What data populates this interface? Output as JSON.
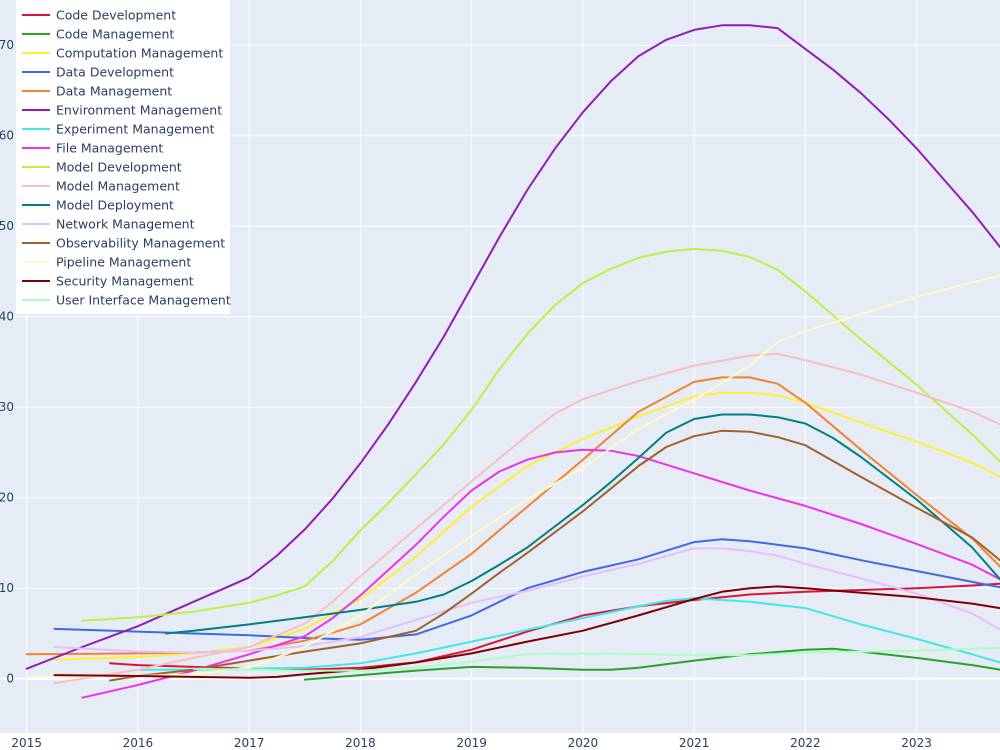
{
  "chart_data": {
    "type": "line",
    "title": "",
    "xlabel": "",
    "ylabel": "",
    "xlim": [
      2014.76,
      2023.75
    ],
    "ylim": [
      -6,
      75
    ],
    "x_ticks": [
      2015,
      2016,
      2017,
      2018,
      2019,
      2020,
      2021,
      2022,
      2023
    ],
    "y_ticks": [
      0,
      10,
      20,
      30,
      40,
      50,
      60,
      70
    ],
    "grid": true,
    "plot_bg": "#e5ecf6",
    "grid_color": "#ffffff",
    "legend_position": "top-left",
    "series": [
      {
        "name": "Code Development",
        "color": "#dc143c",
        "x": [
          2015.75,
          2016.0,
          2016.5,
          2017.0,
          2017.5,
          2018.0,
          2018.5,
          2019.0,
          2019.5,
          2020.0,
          2020.5,
          2021.0,
          2021.5,
          2022.0,
          2022.5,
          2023.0,
          2023.5,
          2023.75
        ],
        "y": [
          1.7,
          1.5,
          1.3,
          1.1,
          1.0,
          1.2,
          1.8,
          3.2,
          5.2,
          7.0,
          8.0,
          8.7,
          9.3,
          9.6,
          9.8,
          10.0,
          10.3,
          10.5
        ]
      },
      {
        "name": "Code Management",
        "color": "#2ca02c",
        "x": [
          2017.5,
          2018.0,
          2018.5,
          2019.0,
          2019.5,
          2020.0,
          2020.25,
          2020.5,
          2021.0,
          2021.5,
          2022.0,
          2022.25,
          2022.5,
          2023.0,
          2023.5,
          2023.75
        ],
        "y": [
          -0.1,
          0.4,
          0.9,
          1.3,
          1.2,
          1.0,
          1.0,
          1.2,
          2.0,
          2.7,
          3.2,
          3.3,
          3.0,
          2.3,
          1.5,
          1.0
        ]
      },
      {
        "name": "Computation Management",
        "color": "#ffee33",
        "x": [
          2015.25,
          2016.0,
          2016.5,
          2017.0,
          2017.5,
          2018.0,
          2018.5,
          2019.0,
          2019.5,
          2020.0,
          2020.5,
          2021.0,
          2021.25,
          2021.5,
          2021.75,
          2022.0,
          2022.5,
          2023.0,
          2023.5,
          2023.75
        ],
        "y": [
          2.1,
          2.4,
          2.8,
          3.5,
          5.5,
          8.8,
          13.5,
          19.0,
          23.5,
          26.5,
          29.0,
          31.2,
          31.6,
          31.6,
          31.3,
          30.5,
          28.3,
          26.2,
          23.9,
          22.3
        ]
      },
      {
        "name": "Data Development",
        "color": "#4169e1",
        "x": [
          2015.25,
          2016.0,
          2016.5,
          2017.0,
          2017.5,
          2018.0,
          2018.5,
          2019.0,
          2019.5,
          2020.0,
          2020.5,
          2021.0,
          2021.25,
          2021.5,
          2022.0,
          2022.5,
          2023.0,
          2023.5,
          2023.75
        ],
        "y": [
          5.5,
          5.2,
          5.0,
          4.8,
          4.5,
          4.3,
          4.9,
          7.0,
          10.0,
          11.8,
          13.2,
          15.1,
          15.4,
          15.2,
          14.4,
          13.1,
          11.9,
          10.7,
          10.1
        ]
      },
      {
        "name": "Data Management",
        "color": "#f58231",
        "x": [
          2015.0,
          2016.0,
          2016.5,
          2017.0,
          2017.5,
          2018.0,
          2018.5,
          2019.0,
          2019.5,
          2020.0,
          2020.5,
          2021.0,
          2021.25,
          2021.5,
          2021.75,
          2022.0,
          2022.5,
          2023.0,
          2023.5,
          2023.75
        ],
        "y": [
          2.7,
          2.8,
          2.9,
          3.1,
          4.2,
          6.0,
          9.5,
          13.8,
          19.0,
          24.2,
          29.5,
          32.8,
          33.3,
          33.3,
          32.6,
          30.5,
          25.3,
          20.3,
          15.5,
          12.4
        ]
      },
      {
        "name": "Environment Management",
        "color": "#911eb4",
        "x": [
          2015.0,
          2015.5,
          2016.0,
          2016.5,
          2017.0,
          2017.25,
          2017.5,
          2017.75,
          2018.0,
          2018.25,
          2018.5,
          2018.75,
          2019.0,
          2019.25,
          2019.5,
          2019.75,
          2020.0,
          2020.25,
          2020.5,
          2020.75,
          2021.0,
          2021.25,
          2021.5,
          2021.75,
          2022.0,
          2022.25,
          2022.5,
          2022.75,
          2023.0,
          2023.25,
          2023.5,
          2023.75
        ],
        "y": [
          1.1,
          3.5,
          5.8,
          8.5,
          11.2,
          13.6,
          16.5,
          19.9,
          23.8,
          28.1,
          32.8,
          37.8,
          43.3,
          48.8,
          54.0,
          58.6,
          62.6,
          66.0,
          68.8,
          70.6,
          71.7,
          72.2,
          72.2,
          71.9,
          69.6,
          67.3,
          64.7,
          61.8,
          58.6,
          55.1,
          51.6,
          47.7
        ]
      },
      {
        "name": "Experiment Management",
        "color": "#42e8e8",
        "x": [
          2016.0,
          2016.5,
          2017.0,
          2017.5,
          2018.0,
          2018.5,
          2019.0,
          2019.5,
          2020.0,
          2020.5,
          2020.75,
          2021.0,
          2021.5,
          2022.0,
          2022.5,
          2023.0,
          2023.5,
          2023.75
        ],
        "y": [
          1.0,
          1.0,
          1.1,
          1.2,
          1.7,
          2.8,
          4.1,
          5.4,
          6.7,
          8.0,
          8.6,
          8.9,
          8.5,
          7.8,
          6.0,
          4.4,
          2.7,
          1.8
        ]
      },
      {
        "name": "File Management",
        "color": "#f032e6",
        "x": [
          2015.5,
          2016.0,
          2016.5,
          2017.0,
          2017.5,
          2017.75,
          2018.0,
          2018.25,
          2018.5,
          2018.75,
          2019.0,
          2019.25,
          2019.5,
          2019.75,
          2020.0,
          2020.25,
          2020.5,
          2021.0,
          2021.5,
          2022.0,
          2022.5,
          2023.0,
          2023.5,
          2023.75
        ],
        "y": [
          -2.1,
          -0.7,
          0.9,
          2.7,
          4.7,
          6.7,
          9.2,
          12.0,
          14.8,
          17.9,
          20.8,
          22.9,
          24.2,
          25.0,
          25.3,
          25.2,
          24.6,
          22.7,
          20.8,
          19.1,
          17.1,
          14.9,
          12.6,
          11.0
        ]
      },
      {
        "name": "Model Development",
        "color": "#bfef45",
        "x": [
          2015.5,
          2016.0,
          2016.5,
          2017.0,
          2017.25,
          2017.5,
          2017.75,
          2018.0,
          2018.25,
          2018.5,
          2018.75,
          2019.0,
          2019.25,
          2019.5,
          2019.75,
          2020.0,
          2020.25,
          2020.5,
          2020.75,
          2021.0,
          2021.25,
          2021.5,
          2021.75,
          2022.0,
          2022.5,
          2023.0,
          2023.5,
          2023.75
        ],
        "y": [
          6.4,
          6.8,
          7.4,
          8.4,
          9.2,
          10.2,
          13.0,
          16.4,
          19.4,
          22.6,
          25.9,
          29.7,
          34.2,
          38.1,
          41.3,
          43.7,
          45.3,
          46.5,
          47.2,
          47.5,
          47.3,
          46.6,
          45.2,
          42.8,
          37.5,
          32.5,
          27.0,
          24.0
        ]
      },
      {
        "name": "Model Management",
        "color": "#fabebe",
        "x": [
          2015.25,
          2016.0,
          2016.5,
          2017.0,
          2017.5,
          2017.75,
          2018.0,
          2018.5,
          2019.0,
          2019.5,
          2019.75,
          2020.0,
          2020.5,
          2021.0,
          2021.5,
          2021.75,
          2022.0,
          2022.5,
          2023.0,
          2023.5,
          2023.75
        ],
        "y": [
          -0.5,
          1.0,
          2.3,
          3.5,
          6.1,
          8.5,
          11.3,
          16.6,
          21.8,
          26.9,
          29.3,
          30.9,
          32.9,
          34.6,
          35.7,
          35.9,
          35.2,
          33.6,
          31.6,
          29.5,
          28.1
        ]
      },
      {
        "name": "Model Deployment",
        "color": "#008080",
        "x": [
          2016.25,
          2016.5,
          2017.0,
          2017.5,
          2018.0,
          2018.5,
          2018.75,
          2019.0,
          2019.25,
          2019.5,
          2020.0,
          2020.25,
          2020.5,
          2020.75,
          2021.0,
          2021.25,
          2021.5,
          2021.75,
          2022.0,
          2022.25,
          2022.5,
          2023.0,
          2023.5,
          2023.75
        ],
        "y": [
          5.0,
          5.3,
          6.0,
          6.8,
          7.6,
          8.5,
          9.3,
          10.8,
          12.6,
          14.5,
          19.2,
          21.7,
          24.4,
          27.2,
          28.7,
          29.2,
          29.2,
          28.9,
          28.2,
          26.6,
          24.5,
          19.8,
          14.5,
          11.0
        ]
      },
      {
        "name": "Network Management",
        "color": "#e6beff",
        "x": [
          2015.25,
          2016.0,
          2016.5,
          2017.0,
          2017.5,
          2018.0,
          2018.5,
          2019.0,
          2019.5,
          2020.0,
          2020.5,
          2021.0,
          2021.25,
          2021.5,
          2021.75,
          2022.0,
          2022.5,
          2023.0,
          2023.5,
          2023.75
        ],
        "y": [
          3.5,
          3.0,
          2.9,
          3.1,
          3.6,
          4.6,
          6.5,
          8.4,
          9.7,
          11.3,
          12.7,
          14.4,
          14.4,
          14.1,
          13.6,
          12.7,
          11.1,
          9.4,
          7.2,
          5.4
        ]
      },
      {
        "name": "Observability Management",
        "color": "#a0622d",
        "x": [
          2015.75,
          2016.0,
          2016.5,
          2017.0,
          2017.5,
          2018.0,
          2018.5,
          2018.75,
          2019.0,
          2019.25,
          2019.5,
          2020.0,
          2020.25,
          2020.5,
          2020.75,
          2021.0,
          2021.25,
          2021.5,
          2021.75,
          2022.0,
          2022.5,
          2023.0,
          2023.5,
          2023.75
        ],
        "y": [
          -0.2,
          0.3,
          1.0,
          2.0,
          3.0,
          3.9,
          5.3,
          7.2,
          9.4,
          11.7,
          13.9,
          18.5,
          21.0,
          23.5,
          25.6,
          26.8,
          27.4,
          27.3,
          26.7,
          25.8,
          22.3,
          18.9,
          15.6,
          13.1
        ]
      },
      {
        "name": "Pipeline Management",
        "color": "#fffac8",
        "x": [
          2015.0,
          2016.0,
          2016.5,
          2017.0,
          2017.5,
          2018.0,
          2018.5,
          2019.0,
          2019.5,
          2020.0,
          2020.5,
          2021.0,
          2021.5,
          2021.75,
          2022.0,
          2022.5,
          2023.0,
          2023.5,
          2023.75
        ],
        "y": [
          0.2,
          0.3,
          0.5,
          1.2,
          3.5,
          7.0,
          11.5,
          15.8,
          19.8,
          23.3,
          27.6,
          30.8,
          34.6,
          37.2,
          38.4,
          40.3,
          42.2,
          43.8,
          44.5
        ]
      },
      {
        "name": "Security Management",
        "color": "#800000",
        "x": [
          2015.25,
          2016.0,
          2016.5,
          2017.0,
          2017.25,
          2017.5,
          2018.0,
          2018.5,
          2019.0,
          2019.5,
          2020.0,
          2020.5,
          2021.0,
          2021.25,
          2021.5,
          2021.75,
          2022.0,
          2022.5,
          2023.0,
          2023.5,
          2023.75
        ],
        "y": [
          0.4,
          0.3,
          0.2,
          0.1,
          0.2,
          0.5,
          1.0,
          1.8,
          2.8,
          4.1,
          5.3,
          7.0,
          8.8,
          9.6,
          10.0,
          10.2,
          10.0,
          9.5,
          9.0,
          8.3,
          7.8
        ]
      },
      {
        "name": "User Interface Management",
        "color": "#aaffc3",
        "x": [
          2016.5,
          2017.0,
          2017.5,
          2018.0,
          2018.5,
          2019.0,
          2019.5,
          2020.0,
          2020.5,
          2021.0,
          2021.5,
          2022.0,
          2022.5,
          2023.0,
          2023.5,
          2023.75
        ],
        "y": [
          1.1,
          1.0,
          0.9,
          0.9,
          1.2,
          1.9,
          2.7,
          2.8,
          2.7,
          2.6,
          2.6,
          2.9,
          3.0,
          3.1,
          3.3,
          3.4
        ]
      }
    ]
  }
}
